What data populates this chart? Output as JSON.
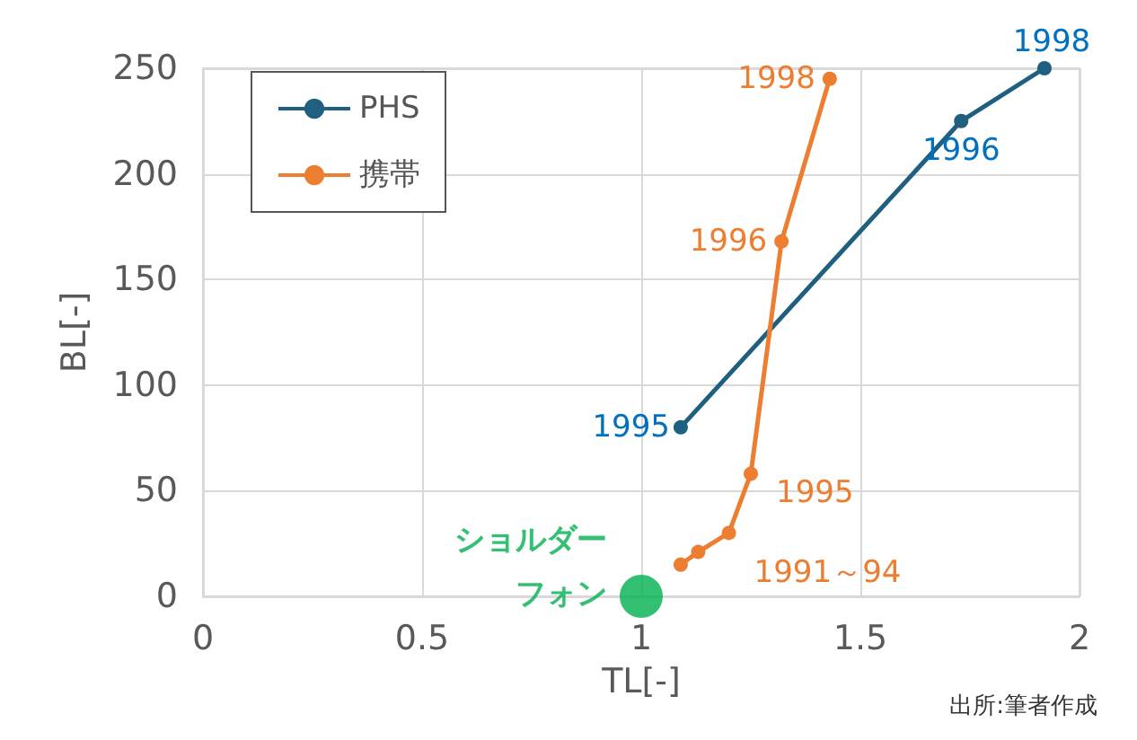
{
  "chart_data": {
    "type": "line",
    "xlabel": "TL[-]",
    "ylabel": "BL[-]",
    "xlim": [
      0,
      2
    ],
    "xticks": [
      0,
      0.5,
      1,
      1.5,
      2
    ],
    "ylim": [
      0,
      250
    ],
    "yticks": [
      0,
      50,
      100,
      150,
      200,
      250
    ],
    "grid": true,
    "legend": "top left",
    "marker": "circle",
    "series": [
      {
        "name": "PHS",
        "color": "#1f5f7f",
        "x": [
          1.09,
          1.73,
          1.92
        ],
        "values": [
          80,
          225,
          250
        ]
      },
      {
        "name": "携帯",
        "color": "#ed7d31",
        "x": [
          1.09,
          1.13,
          1.2,
          1.25,
          1.32,
          1.43
        ],
        "values": [
          15,
          21,
          30,
          58,
          168,
          245
        ]
      },
      {
        "name": "ショルダーフォン",
        "type": "scatter",
        "color": "#00b050",
        "x": [
          1
        ],
        "values": [
          0
        ]
      }
    ],
    "annotations": [
      {
        "text": "1995",
        "x": 1.09,
        "y": 80
      },
      {
        "text": "1996",
        "x": 1.73,
        "y": 225
      },
      {
        "text": "1998",
        "x": 1.92,
        "y": 250
      },
      {
        "text": "1991～94",
        "x": 1.2,
        "y": 30
      },
      {
        "text": "1995",
        "x": 1.25,
        "y": 58
      },
      {
        "text": "1996",
        "x": 1.32,
        "y": 168
      },
      {
        "text": "1998",
        "x": 1.43,
        "y": 245
      },
      "出所:筆者作成"
    ]
  }
}
